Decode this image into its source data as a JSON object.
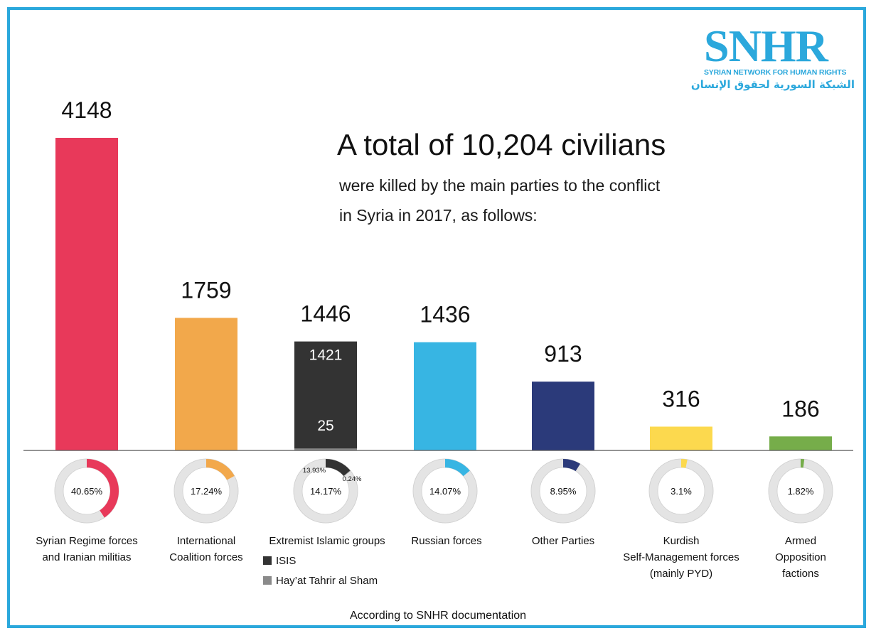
{
  "logo": {
    "word": "SNHR",
    "english": "SYRIAN NETWORK FOR HUMAN RIGHTS",
    "arabic": "الشبكة السورية لحقوق الإنسان"
  },
  "headline": "A total of 10,204 civilians",
  "subline1": "were killed by the main parties to the conflict",
  "subline2": "in Syria in 2017, as follows:",
  "footnote": "According to SNHR documentation",
  "legend": {
    "isis": "ISIS",
    "hts": "Hay’at Tahrir al Sham",
    "isis_color": "#333333",
    "hts_color": "#8a8a8a"
  },
  "chart_data": {
    "type": "bar",
    "categories": [
      "Syrian Regime forces\nand Iranian militias",
      "International\nCoalition forces",
      "Extremist Islamic groups",
      "Russian forces",
      "Other Parties",
      "Kurdish\nSelf-Management forces\n(mainly PYD)",
      "Armed Opposition\nfactions"
    ],
    "values": [
      4148,
      1759,
      1446,
      1436,
      913,
      316,
      186
    ],
    "value_labels": [
      "4148",
      "1759",
      "1446",
      "1436",
      "913",
      "316",
      "186"
    ],
    "colors": [
      "#e8395a",
      "#f2a84b",
      "#333333",
      "#37b5e3",
      "#2b3a7a",
      "#fcd94e",
      "#76ad4a"
    ],
    "stacked_segments": {
      "category_index": 2,
      "segments": [
        {
          "name": "ISIS",
          "value": 1421,
          "label": "1421",
          "color": "#333333"
        },
        {
          "name": "Hay’at Tahrir al Sham",
          "value": 25,
          "label": "25",
          "color": "#8a8a8a"
        }
      ]
    },
    "percentages": [
      40.65,
      17.24,
      14.17,
      14.07,
      8.95,
      3.1,
      1.82
    ],
    "percent_labels": [
      "40.65%",
      "17.24%",
      "14.17%",
      "14.07%",
      "8.95%",
      "3.1%",
      "1.82%"
    ],
    "sub_percent_labels": {
      "isis": "13.93%",
      "hts": "0.24%"
    },
    "ylim": [
      0,
      4148
    ]
  }
}
